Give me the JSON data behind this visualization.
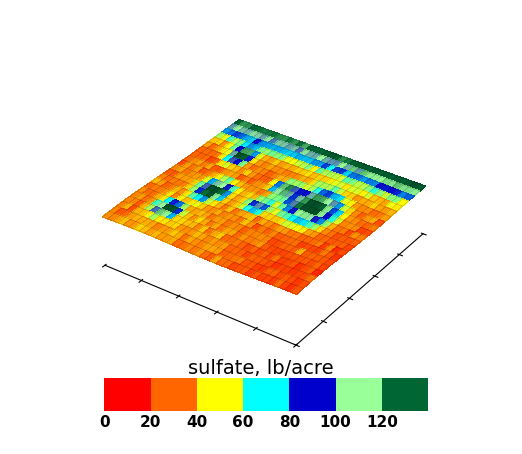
{
  "title": "sulfate, lb/acre",
  "colorbar_ticks": [
    0,
    20,
    40,
    60,
    80,
    100,
    120
  ],
  "colorbar_colors": [
    "#ff0000",
    "#ff6600",
    "#ffff00",
    "#00ffff",
    "#0000cc",
    "#99ff99",
    "#006633"
  ],
  "vmin": 0,
  "vmax": 140,
  "grid_nx": 36,
  "grid_ny": 22,
  "elev": 32,
  "azim": -55,
  "figsize": [
    5.22,
    4.54
  ],
  "dpi": 100,
  "surface_zscale": 0.12
}
